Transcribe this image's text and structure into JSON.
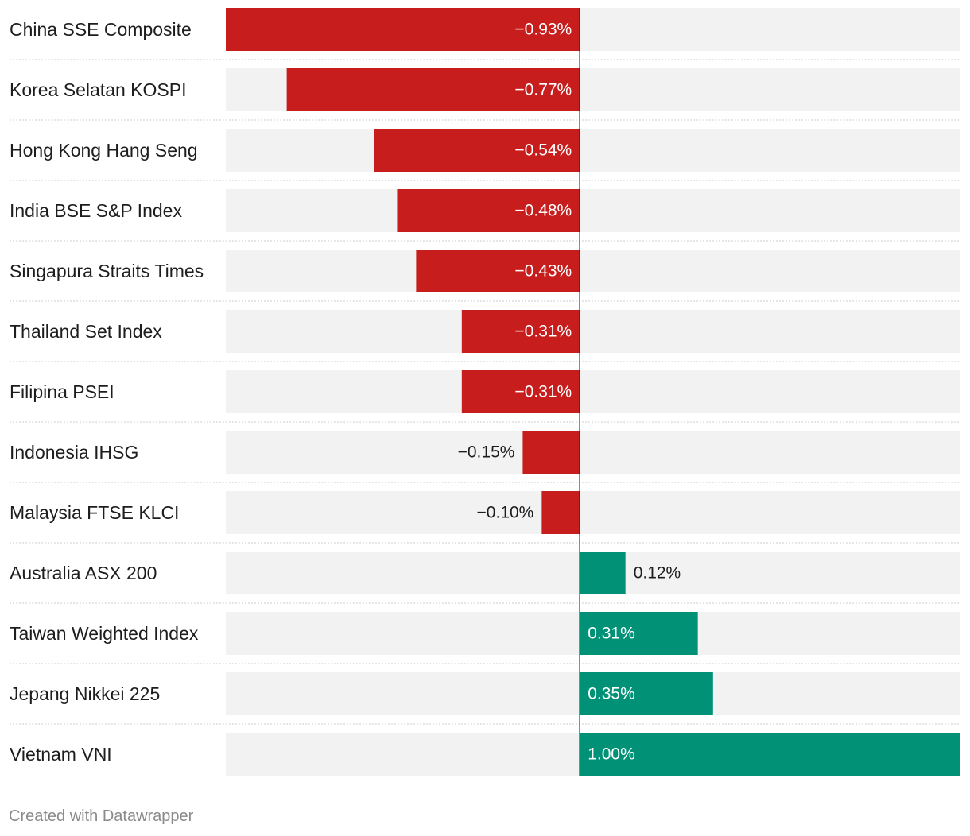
{
  "chart_data": {
    "type": "bar",
    "orientation": "horizontal",
    "categories": [
      "China SSE Composite",
      "Korea Selatan KOSPI",
      "Hong Kong Hang Seng",
      "India BSE S&P Index",
      "Singapura Straits Times",
      "Thailand Set Index",
      "Filipina PSEI",
      "Indonesia IHSG",
      "Malaysia FTSE KLCI",
      "Australia ASX 200",
      "Taiwan Weighted Index",
      "Jepang Nikkei 225",
      "Vietnam VNI"
    ],
    "values": [
      -0.93,
      -0.77,
      -0.54,
      -0.48,
      -0.43,
      -0.31,
      -0.31,
      -0.15,
      -0.1,
      0.12,
      0.31,
      0.35,
      1.0
    ],
    "value_labels": [
      "−0.93%",
      "−0.77%",
      "−0.54%",
      "−0.48%",
      "−0.43%",
      "−0.31%",
      "−0.31%",
      "−0.15%",
      "−0.10%",
      "0.12%",
      "0.31%",
      "0.35%",
      "1.00%"
    ],
    "xlim": [
      -0.93,
      1.0
    ],
    "title": "",
    "xlabel": "",
    "ylabel": "",
    "colors": {
      "negative": "#c71e1d",
      "positive": "#009177",
      "track": "#f2f2f2",
      "zero_line": "#222222",
      "separator": "#cccccc",
      "label": "#1d1d1d",
      "inside_label": "#ffffff"
    }
  },
  "footer": {
    "credit": "Created with Datawrapper"
  }
}
